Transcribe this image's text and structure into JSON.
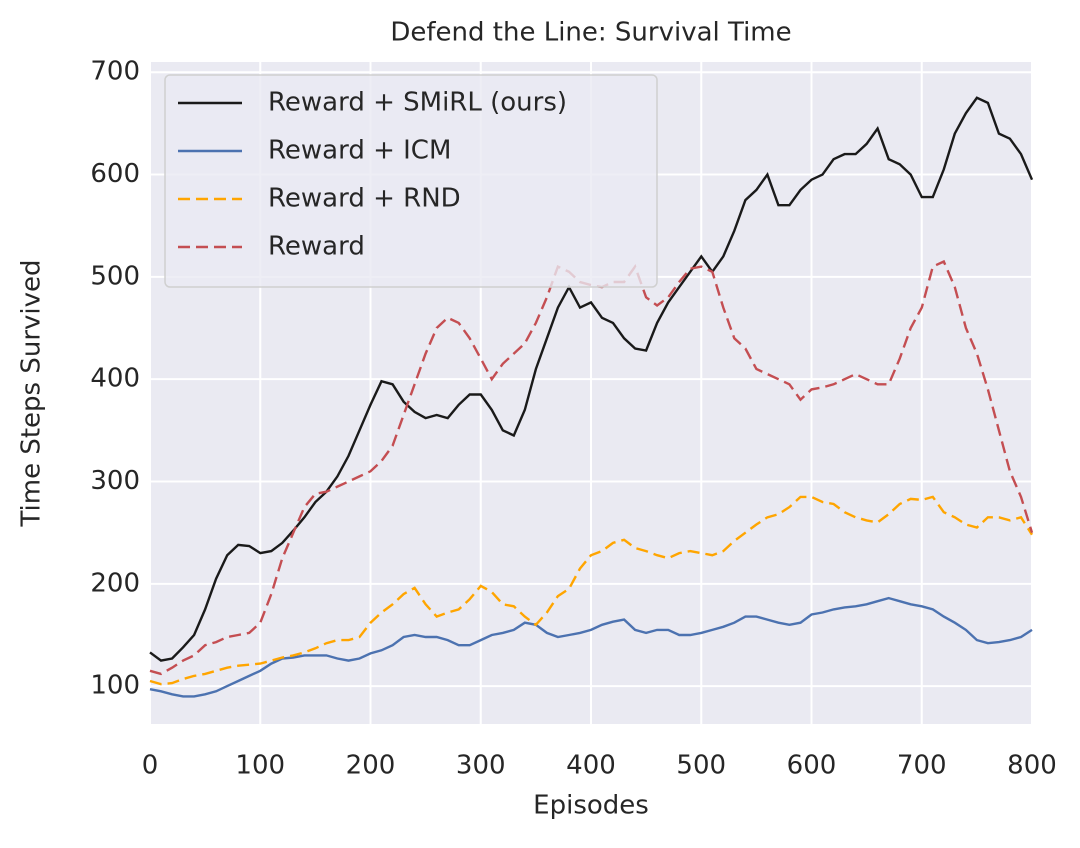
{
  "chart_data": {
    "type": "line",
    "title": "Defend the Line: Survival Time",
    "xlabel": "Episodes",
    "ylabel": "Time Steps Survived",
    "x": [
      0,
      10,
      20,
      30,
      40,
      50,
      60,
      70,
      80,
      90,
      100,
      110,
      120,
      130,
      140,
      150,
      160,
      170,
      180,
      190,
      200,
      210,
      220,
      230,
      240,
      250,
      260,
      270,
      280,
      290,
      300,
      310,
      320,
      330,
      340,
      350,
      360,
      370,
      380,
      390,
      400,
      410,
      420,
      430,
      440,
      450,
      460,
      470,
      480,
      490,
      500,
      510,
      520,
      530,
      540,
      550,
      560,
      570,
      580,
      590,
      600,
      610,
      620,
      630,
      640,
      650,
      660,
      670,
      680,
      690,
      700,
      710,
      720,
      730,
      740,
      750,
      760,
      770,
      780,
      790,
      800
    ],
    "series": [
      {
        "name": "Reward + SMiRL (ours)",
        "color": "#1a1a1a",
        "linestyle": "solid",
        "values": [
          133,
          125,
          127,
          138,
          150,
          175,
          205,
          228,
          238,
          237,
          230,
          232,
          240,
          252,
          265,
          280,
          290,
          305,
          325,
          350,
          375,
          398,
          395,
          378,
          368,
          362,
          365,
          362,
          375,
          385,
          385,
          370,
          350,
          345,
          370,
          410,
          440,
          470,
          490,
          470,
          475,
          460,
          455,
          440,
          430,
          428,
          455,
          475,
          490,
          505,
          520,
          505,
          520,
          545,
          575,
          585,
          600,
          570,
          570,
          585,
          595,
          600,
          615,
          620,
          620,
          630,
          645,
          615,
          610,
          600,
          578,
          578,
          605,
          640,
          660,
          675,
          670,
          640,
          635,
          620,
          595
        ]
      },
      {
        "name": "Reward + ICM",
        "color": "#4c72b0",
        "linestyle": "solid",
        "values": [
          97,
          95,
          92,
          90,
          90,
          92,
          95,
          100,
          105,
          110,
          115,
          122,
          127,
          128,
          130,
          130,
          130,
          127,
          125,
          127,
          132,
          135,
          140,
          148,
          150,
          148,
          148,
          145,
          140,
          140,
          145,
          150,
          152,
          155,
          162,
          160,
          152,
          148,
          150,
          152,
          155,
          160,
          163,
          165,
          155,
          152,
          155,
          155,
          150,
          150,
          152,
          155,
          158,
          162,
          168,
          168,
          165,
          162,
          160,
          162,
          170,
          172,
          175,
          177,
          178,
          180,
          183,
          186,
          183,
          180,
          178,
          175,
          168,
          162,
          155,
          145,
          142,
          143,
          145,
          148,
          155
        ]
      },
      {
        "name": "Reward + RND",
        "color": "#ffa500",
        "linestyle": "dashed",
        "values": [
          105,
          102,
          103,
          107,
          110,
          112,
          115,
          118,
          120,
          121,
          122,
          125,
          128,
          130,
          133,
          137,
          142,
          145,
          145,
          148,
          162,
          172,
          180,
          190,
          196,
          180,
          168,
          172,
          175,
          185,
          198,
          192,
          180,
          178,
          168,
          160,
          172,
          188,
          195,
          215,
          228,
          232,
          240,
          243,
          235,
          232,
          228,
          225,
          230,
          232,
          230,
          228,
          232,
          242,
          250,
          258,
          265,
          268,
          275,
          285,
          285,
          280,
          278,
          270,
          265,
          262,
          260,
          268,
          278,
          283,
          282,
          285,
          270,
          265,
          258,
          255,
          265,
          265,
          262,
          265,
          248
        ]
      },
      {
        "name": "Reward",
        "color": "#c44e52",
        "linestyle": "dashed",
        "values": [
          115,
          112,
          118,
          125,
          130,
          140,
          143,
          148,
          150,
          152,
          162,
          190,
          225,
          250,
          275,
          288,
          290,
          295,
          300,
          305,
          310,
          320,
          335,
          365,
          395,
          425,
          450,
          460,
          455,
          440,
          420,
          400,
          415,
          425,
          435,
          455,
          480,
          510,
          505,
          495,
          492,
          490,
          495,
          495,
          510,
          480,
          472,
          480,
          495,
          508,
          510,
          505,
          470,
          440,
          430,
          410,
          405,
          400,
          395,
          380,
          390,
          392,
          395,
          400,
          405,
          400,
          395,
          395,
          420,
          450,
          470,
          510,
          515,
          490,
          450,
          425,
          390,
          350,
          310,
          285,
          250
        ]
      }
    ],
    "xlim": [
      0,
      800
    ],
    "xticks": [
      0,
      100,
      200,
      300,
      400,
      500,
      600,
      700,
      800
    ],
    "ylim": [
      63,
      710
    ],
    "yticks": [
      100,
      200,
      300,
      400,
      500,
      600,
      700
    ],
    "grid": true,
    "legend": "upper left"
  }
}
